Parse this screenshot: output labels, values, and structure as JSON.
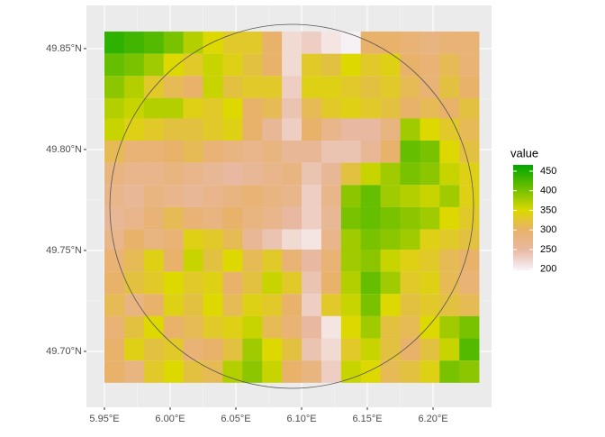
{
  "chart_data": {
    "type": "heatmap",
    "x": [
      5.9575,
      5.9725,
      5.9875,
      6.0025,
      6.0175,
      6.0325,
      6.0475,
      6.0625,
      6.0775,
      6.0925,
      6.1075,
      6.1225,
      6.1375,
      6.1525,
      6.1675,
      6.1825,
      6.1975,
      6.2125,
      6.2275
    ],
    "y": [
      49.853,
      49.842,
      49.831,
      49.82,
      49.81,
      49.799,
      49.788,
      49.777,
      49.766,
      49.755,
      49.745,
      49.734,
      49.723,
      49.712,
      49.701,
      49.69
    ],
    "z": [
      [
        440,
        430,
        420,
        400,
        370,
        350,
        330,
        330,
        300,
        220,
        230,
        210,
        200,
        300,
        300,
        290,
        280,
        290,
        290
      ],
      [
        410,
        400,
        380,
        350,
        330,
        360,
        340,
        320,
        300,
        220,
        330,
        320,
        350,
        330,
        340,
        300,
        290,
        310,
        290
      ],
      [
        390,
        370,
        330,
        310,
        300,
        360,
        320,
        330,
        330,
        230,
        340,
        340,
        330,
        320,
        330,
        310,
        290,
        320,
        300
      ],
      [
        370,
        360,
        370,
        370,
        340,
        330,
        350,
        300,
        310,
        240,
        310,
        330,
        340,
        330,
        320,
        300,
        310,
        300,
        320
      ],
      [
        360,
        340,
        330,
        320,
        320,
        330,
        340,
        300,
        260,
        230,
        300,
        270,
        250,
        250,
        280,
        380,
        350,
        330,
        310
      ],
      [
        310,
        290,
        290,
        300,
        310,
        290,
        280,
        270,
        280,
        260,
        260,
        240,
        240,
        260,
        300,
        410,
        400,
        350,
        320
      ],
      [
        280,
        270,
        270,
        280,
        270,
        260,
        250,
        260,
        270,
        280,
        240,
        260,
        320,
        360,
        380,
        400,
        390,
        360,
        340
      ],
      [
        270,
        260,
        280,
        270,
        260,
        270,
        280,
        290,
        280,
        270,
        230,
        270,
        390,
        410,
        380,
        370,
        360,
        380,
        340
      ],
      [
        260,
        270,
        290,
        310,
        290,
        280,
        300,
        280,
        270,
        250,
        230,
        260,
        400,
        410,
        400,
        390,
        380,
        350,
        330
      ],
      [
        270,
        300,
        280,
        290,
        340,
        330,
        310,
        260,
        240,
        220,
        210,
        270,
        380,
        400,
        390,
        380,
        340,
        330,
        320
      ],
      [
        290,
        310,
        340,
        300,
        360,
        320,
        350,
        310,
        330,
        290,
        250,
        290,
        380,
        390,
        360,
        340,
        330,
        310,
        300
      ],
      [
        300,
        320,
        330,
        350,
        330,
        340,
        300,
        320,
        360,
        330,
        240,
        300,
        370,
        410,
        380,
        330,
        340,
        310,
        290
      ],
      [
        310,
        280,
        300,
        340,
        320,
        350,
        310,
        340,
        330,
        300,
        230,
        330,
        360,
        400,
        350,
        320,
        330,
        320,
        310
      ],
      [
        290,
        320,
        350,
        300,
        310,
        330,
        340,
        360,
        310,
        290,
        250,
        210,
        350,
        380,
        320,
        310,
        350,
        380,
        400
      ],
      [
        300,
        340,
        320,
        330,
        290,
        300,
        320,
        380,
        350,
        320,
        240,
        220,
        330,
        360,
        320,
        300,
        320,
        360,
        420
      ],
      [
        300,
        280,
        330,
        350,
        320,
        310,
        370,
        390,
        360,
        300,
        280,
        230,
        360,
        350,
        310,
        320,
        340,
        400,
        390
      ]
    ],
    "xlim": [
      5.9363,
      6.2445
    ],
    "ylim": [
      49.6723,
      49.8714
    ],
    "xticks": [
      {
        "value": 5.95,
        "label": "5.95°E"
      },
      {
        "value": 6.0,
        "label": "6.00°E"
      },
      {
        "value": 6.05,
        "label": "6.05°E"
      },
      {
        "value": 6.1,
        "label": "6.10°E"
      },
      {
        "value": 6.15,
        "label": "6.15°E"
      },
      {
        "value": 6.2,
        "label": "6.20°E"
      }
    ],
    "yticks": [
      {
        "value": 49.7,
        "label": "49.70°N"
      },
      {
        "value": 49.75,
        "label": "49.75°N"
      },
      {
        "value": 49.8,
        "label": "49.80°N"
      },
      {
        "value": 49.85,
        "label": "49.85°N"
      }
    ],
    "legend_title": "value",
    "zlim": [
      197,
      466
    ],
    "zticks": [
      200,
      250,
      300,
      350,
      400,
      450
    ],
    "colorscale": [
      {
        "value": 200,
        "color": "#f7f0f4"
      },
      {
        "value": 250,
        "color": "#e8b8a0"
      },
      {
        "value": 300,
        "color": "#e8b26a"
      },
      {
        "value": 350,
        "color": "#dcd800"
      },
      {
        "value": 400,
        "color": "#78c200"
      },
      {
        "value": 466,
        "color": "#00a600"
      }
    ],
    "grid": true
  }
}
